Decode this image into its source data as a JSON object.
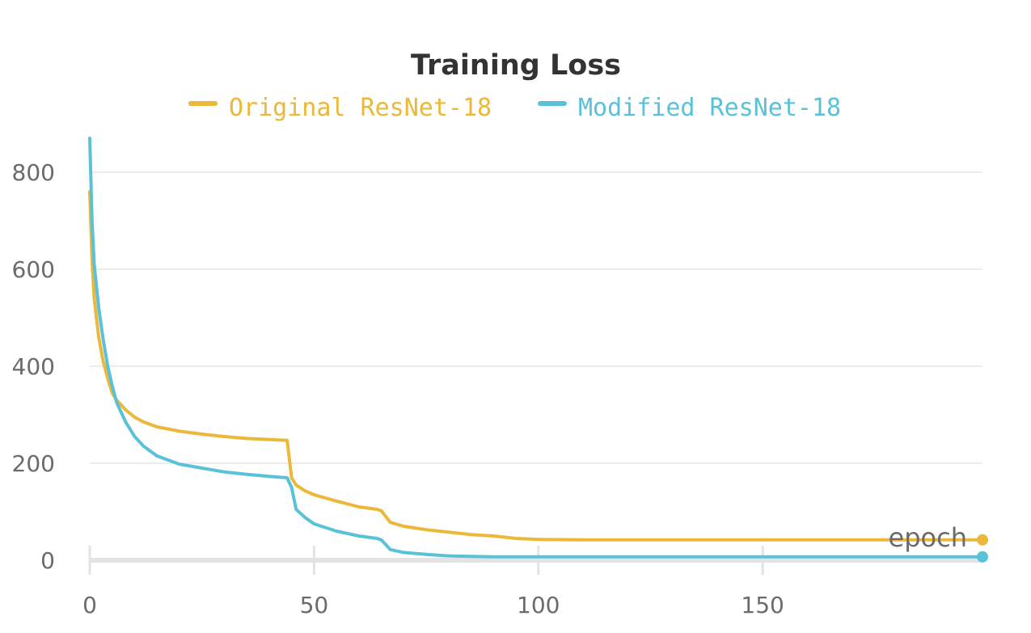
{
  "chart_data": {
    "type": "line",
    "title": "Training Loss",
    "xlabel": "epoch",
    "ylabel": "",
    "xlim": [
      0,
      199
    ],
    "ylim": [
      0,
      900
    ],
    "x_ticks": [
      0,
      50,
      100,
      150
    ],
    "y_ticks": [
      0,
      200,
      400,
      600,
      800
    ],
    "grid": true,
    "legend_position": "top-center",
    "series": [
      {
        "name": "Original ResNet-18",
        "color": "#ebb839",
        "points": [
          [
            0,
            760
          ],
          [
            0.5,
            620
          ],
          [
            1,
            540
          ],
          [
            2,
            460
          ],
          [
            3,
            410
          ],
          [
            4,
            375
          ],
          [
            5,
            345
          ],
          [
            6,
            330
          ],
          [
            8,
            310
          ],
          [
            10,
            295
          ],
          [
            12,
            285
          ],
          [
            15,
            275
          ],
          [
            20,
            266
          ],
          [
            25,
            260
          ],
          [
            30,
            255
          ],
          [
            35,
            251
          ],
          [
            40,
            249
          ],
          [
            44,
            247
          ],
          [
            45,
            170
          ],
          [
            46,
            155
          ],
          [
            48,
            143
          ],
          [
            50,
            135
          ],
          [
            55,
            122
          ],
          [
            60,
            110
          ],
          [
            64,
            105
          ],
          [
            65,
            102
          ],
          [
            67,
            78
          ],
          [
            70,
            70
          ],
          [
            75,
            63
          ],
          [
            80,
            58
          ],
          [
            85,
            53
          ],
          [
            90,
            50
          ],
          [
            95,
            45
          ],
          [
            100,
            43
          ],
          [
            110,
            42
          ],
          [
            120,
            42
          ],
          [
            130,
            42
          ],
          [
            140,
            42
          ],
          [
            150,
            42
          ],
          [
            160,
            42
          ],
          [
            170,
            42
          ],
          [
            180,
            42
          ],
          [
            190,
            42
          ],
          [
            199,
            42
          ]
        ]
      },
      {
        "name": "Modified ResNet-18",
        "color": "#5ac2d8",
        "points": [
          [
            0,
            870
          ],
          [
            0.5,
            700
          ],
          [
            1,
            610
          ],
          [
            2,
            520
          ],
          [
            3,
            455
          ],
          [
            4,
            400
          ],
          [
            5,
            360
          ],
          [
            6,
            325
          ],
          [
            8,
            285
          ],
          [
            10,
            255
          ],
          [
            12,
            235
          ],
          [
            15,
            215
          ],
          [
            20,
            198
          ],
          [
            25,
            190
          ],
          [
            30,
            182
          ],
          [
            35,
            177
          ],
          [
            40,
            173
          ],
          [
            44,
            170
          ],
          [
            45,
            150
          ],
          [
            46,
            105
          ],
          [
            48,
            88
          ],
          [
            50,
            75
          ],
          [
            55,
            60
          ],
          [
            60,
            50
          ],
          [
            64,
            45
          ],
          [
            65,
            42
          ],
          [
            67,
            22
          ],
          [
            70,
            16
          ],
          [
            75,
            12
          ],
          [
            80,
            9
          ],
          [
            85,
            8
          ],
          [
            90,
            7
          ],
          [
            100,
            7
          ],
          [
            110,
            7
          ],
          [
            120,
            7
          ],
          [
            130,
            7
          ],
          [
            140,
            7
          ],
          [
            150,
            7
          ],
          [
            160,
            7
          ],
          [
            170,
            7
          ],
          [
            180,
            7
          ],
          [
            190,
            7
          ],
          [
            199,
            7
          ]
        ]
      }
    ]
  }
}
